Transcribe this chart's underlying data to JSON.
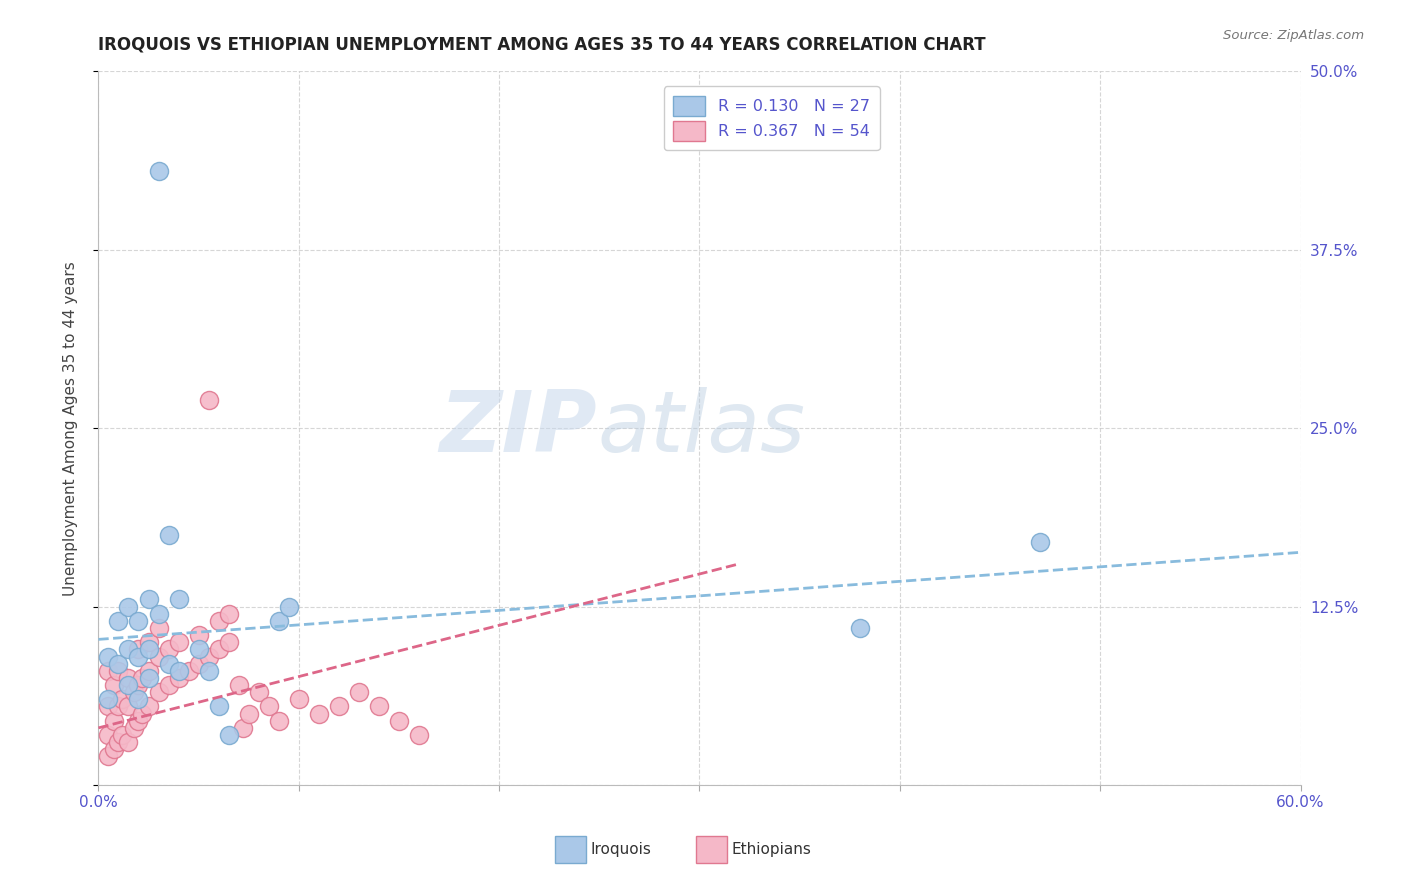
{
  "title": "IROQUOIS VS ETHIOPIAN UNEMPLOYMENT AMONG AGES 35 TO 44 YEARS CORRELATION CHART",
  "source": "Source: ZipAtlas.com",
  "ylabel": "Unemployment Among Ages 35 to 44 years",
  "xlim": [
    0.0,
    0.6
  ],
  "ylim": [
    0.0,
    0.5
  ],
  "background_color": "#ffffff",
  "watermark_zip": "ZIP",
  "watermark_atlas": "atlas",
  "axis_label_color": "#5555cc",
  "iroquois_color": "#aac8e8",
  "iroquois_edge_color": "#7aaad0",
  "ethiopians_color": "#f5b8c8",
  "ethiopians_edge_color": "#e07890",
  "iroquois_line_color": "#88bbdd",
  "ethiopians_line_color": "#dd6688",
  "iroquois_scatter_x": [
    0.03,
    0.005,
    0.005,
    0.01,
    0.01,
    0.015,
    0.015,
    0.015,
    0.02,
    0.02,
    0.02,
    0.025,
    0.025,
    0.025,
    0.03,
    0.035,
    0.035,
    0.04,
    0.04,
    0.05,
    0.055,
    0.06,
    0.065,
    0.09,
    0.095,
    0.38,
    0.47
  ],
  "iroquois_scatter_y": [
    0.43,
    0.06,
    0.09,
    0.085,
    0.115,
    0.07,
    0.095,
    0.125,
    0.06,
    0.09,
    0.115,
    0.075,
    0.095,
    0.13,
    0.12,
    0.085,
    0.175,
    0.08,
    0.13,
    0.095,
    0.08,
    0.055,
    0.035,
    0.115,
    0.125,
    0.11,
    0.17
  ],
  "ethiopians_scatter_x": [
    0.005,
    0.005,
    0.005,
    0.005,
    0.008,
    0.008,
    0.008,
    0.01,
    0.01,
    0.01,
    0.012,
    0.012,
    0.015,
    0.015,
    0.015,
    0.018,
    0.018,
    0.02,
    0.02,
    0.02,
    0.022,
    0.022,
    0.025,
    0.025,
    0.025,
    0.03,
    0.03,
    0.03,
    0.035,
    0.035,
    0.04,
    0.04,
    0.045,
    0.05,
    0.05,
    0.055,
    0.055,
    0.06,
    0.06,
    0.065,
    0.065,
    0.07,
    0.072,
    0.075,
    0.08,
    0.085,
    0.09,
    0.1,
    0.11,
    0.12,
    0.13,
    0.14,
    0.15,
    0.16
  ],
  "ethiopians_scatter_y": [
    0.02,
    0.035,
    0.055,
    0.08,
    0.025,
    0.045,
    0.07,
    0.03,
    0.055,
    0.08,
    0.035,
    0.06,
    0.03,
    0.055,
    0.075,
    0.04,
    0.065,
    0.045,
    0.07,
    0.095,
    0.05,
    0.075,
    0.055,
    0.08,
    0.1,
    0.065,
    0.09,
    0.11,
    0.07,
    0.095,
    0.075,
    0.1,
    0.08,
    0.085,
    0.105,
    0.09,
    0.27,
    0.095,
    0.115,
    0.1,
    0.12,
    0.07,
    0.04,
    0.05,
    0.065,
    0.055,
    0.045,
    0.06,
    0.05,
    0.055,
    0.065,
    0.055,
    0.045,
    0.035
  ],
  "iroquois_trend_x": [
    0.0,
    0.6
  ],
  "iroquois_trend_y": [
    0.102,
    0.163
  ],
  "ethiopians_trend_x": [
    0.0,
    0.32
  ],
  "ethiopians_trend_y": [
    0.04,
    0.155
  ],
  "legend_R1": "R = 0.130",
  "legend_N1": "N = 27",
  "legend_R2": "R = 0.367",
  "legend_N2": "N = 54",
  "legend_label1": "Iroquois",
  "legend_label2": "Ethiopians"
}
